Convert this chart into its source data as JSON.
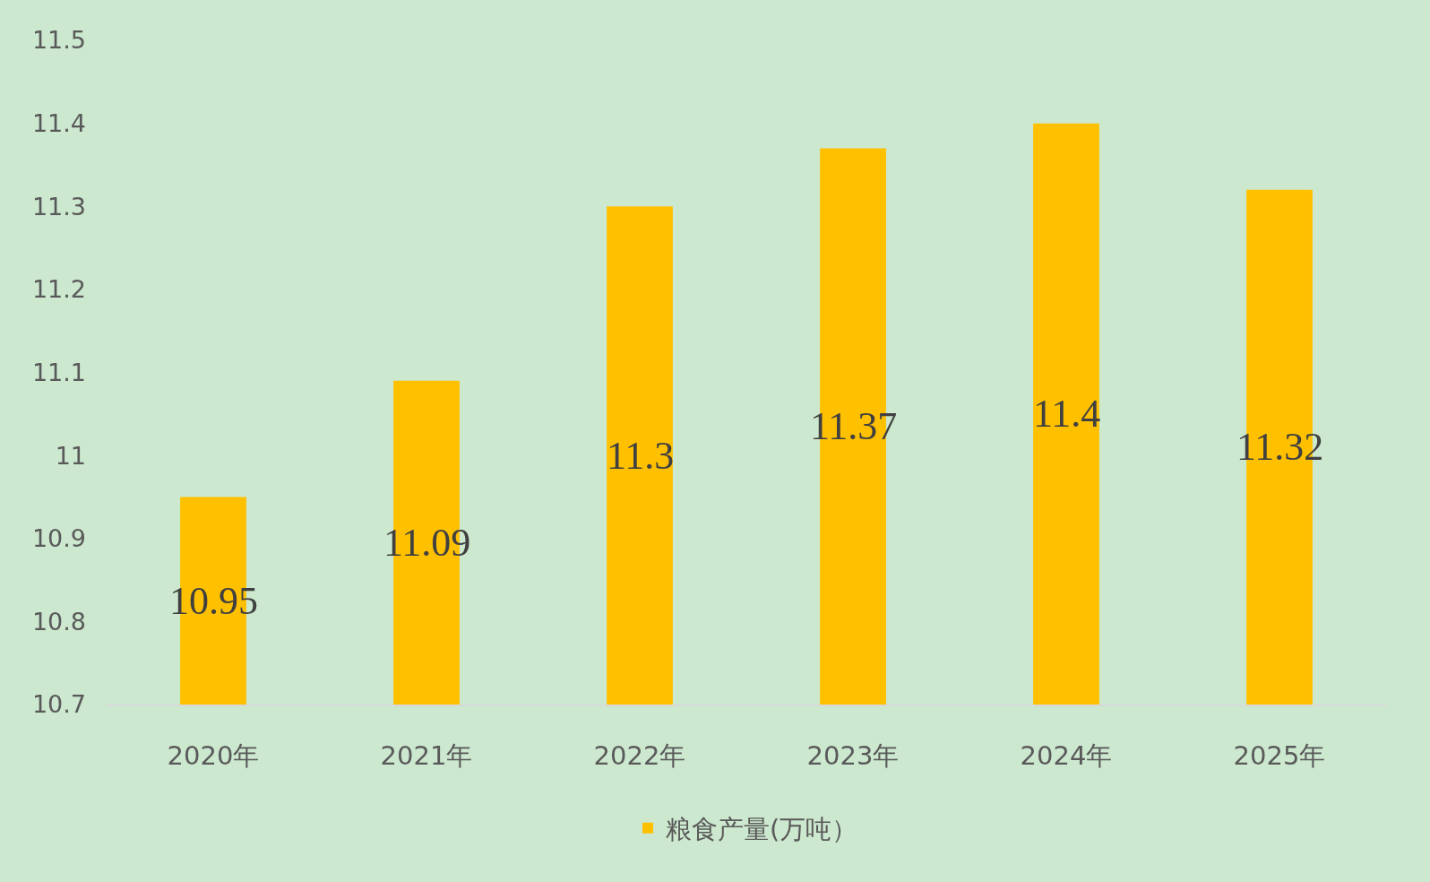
{
  "chart_data": {
    "type": "bar",
    "categories": [
      "2020年",
      "2021年",
      "2022年",
      "2023年",
      "2024年",
      "2025年"
    ],
    "series": [
      {
        "name": "粮食产量(万吨）",
        "color": "#ffc000",
        "values": [
          10.95,
          11.09,
          11.3,
          11.37,
          11.4,
          11.32
        ]
      }
    ],
    "ylim": [
      10.7,
      11.5
    ],
    "yticks": [
      10.7,
      10.8,
      10.9,
      11,
      11.1,
      11.2,
      11.3,
      11.4,
      11.5
    ],
    "data_labels": true,
    "legend": "bottom"
  }
}
